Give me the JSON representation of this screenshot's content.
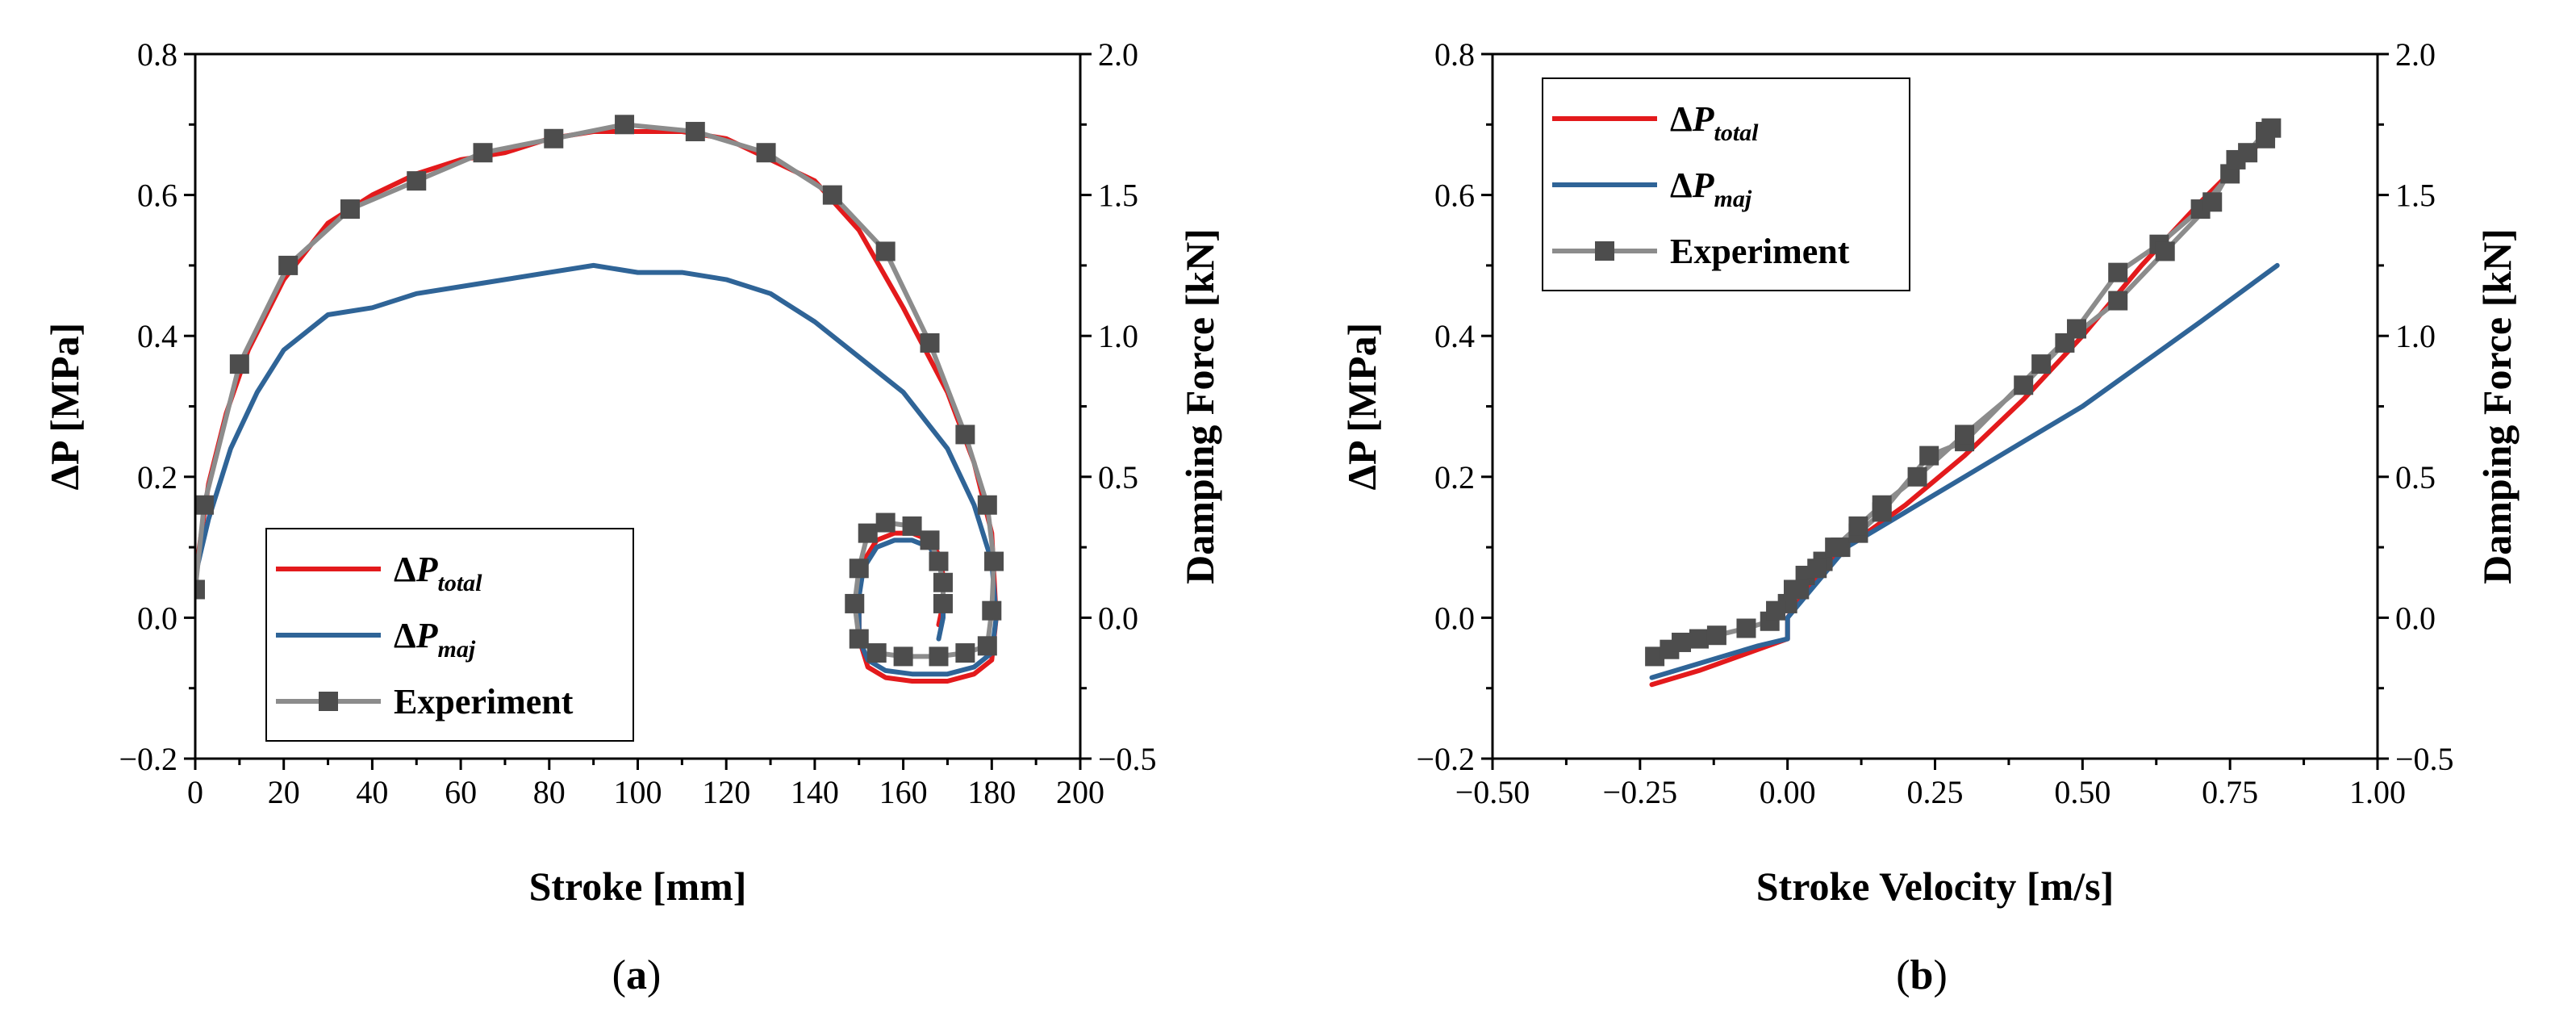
{
  "figure": {
    "labels": {
      "a": "a",
      "b": "b"
    },
    "colors": {
      "total": "#e31a1c",
      "maj": "#2f6497",
      "exp_line": "#8c8c8c",
      "exp_marker": "#4d4d4d"
    },
    "legend": {
      "delta": "ΔP",
      "p_letter": "P",
      "total_sub": "total",
      "maj_sub": "maj",
      "experiment": "Experiment"
    }
  },
  "chart_data": [
    {
      "type": "line",
      "panel": "a",
      "xlabel": "Stroke [mm]",
      "ylabel": "ΔP [MPa]",
      "y2label": "Damping Force [kN]",
      "xlim": [
        0,
        200
      ],
      "ylim": [
        -0.2,
        0.8
      ],
      "y2lim": [
        -0.5,
        2.0
      ],
      "xticks": [
        "0",
        "20",
        "40",
        "60",
        "80",
        "100",
        "120",
        "140",
        "160",
        "180",
        "200"
      ],
      "yticks": [
        "−0.2",
        "0.0",
        "0.2",
        "0.4",
        "0.6",
        "0.8"
      ],
      "y2ticks": [
        "−0.5",
        "0.0",
        "0.5",
        "1.0",
        "1.5",
        "2.0"
      ],
      "series": [
        {
          "name": "ΔP_total",
          "segments": [
            [
              [
                0,
                0.06
              ],
              [
                3,
                0.19
              ],
              [
                7,
                0.29
              ],
              [
                12,
                0.38
              ],
              [
                20,
                0.48
              ],
              [
                30,
                0.56
              ],
              [
                40,
                0.6
              ],
              [
                50,
                0.63
              ],
              [
                60,
                0.65
              ],
              [
                70,
                0.66
              ],
              [
                80,
                0.68
              ],
              [
                90,
                0.69
              ],
              [
                100,
                0.69
              ],
              [
                110,
                0.69
              ],
              [
                120,
                0.68
              ],
              [
                130,
                0.65
              ],
              [
                140,
                0.62
              ],
              [
                150,
                0.55
              ],
              [
                160,
                0.44
              ],
              [
                170,
                0.32
              ],
              [
                176,
                0.22
              ],
              [
                180,
                0.12
              ],
              [
                181,
                0.0
              ]
            ],
            [
              [
                181,
                0.0
              ],
              [
                180,
                -0.06
              ],
              [
                176,
                -0.08
              ],
              [
                170,
                -0.09
              ],
              [
                162,
                -0.09
              ],
              [
                156,
                -0.085
              ],
              [
                152,
                -0.07
              ],
              [
                150,
                -0.03
              ],
              [
                150,
                0.03
              ],
              [
                151,
                0.08
              ],
              [
                154,
                0.11
              ],
              [
                158,
                0.12
              ],
              [
                162,
                0.12
              ],
              [
                166,
                0.11
              ],
              [
                168,
                0.09
              ],
              [
                169,
                0.06
              ],
              [
                169,
                0.02
              ],
              [
                168,
                -0.01
              ]
            ]
          ]
        },
        {
          "name": "ΔP_maj",
          "segments": [
            [
              [
                0,
                0.06
              ],
              [
                3,
                0.14
              ],
              [
                8,
                0.24
              ],
              [
                14,
                0.32
              ],
              [
                20,
                0.38
              ],
              [
                30,
                0.43
              ],
              [
                40,
                0.44
              ],
              [
                50,
                0.46
              ],
              [
                60,
                0.47
              ],
              [
                70,
                0.48
              ],
              [
                80,
                0.49
              ],
              [
                90,
                0.5
              ],
              [
                100,
                0.49
              ],
              [
                110,
                0.49
              ],
              [
                120,
                0.48
              ],
              [
                130,
                0.46
              ],
              [
                140,
                0.42
              ],
              [
                150,
                0.37
              ],
              [
                160,
                0.32
              ],
              [
                170,
                0.24
              ],
              [
                176,
                0.16
              ],
              [
                180,
                0.08
              ],
              [
                181,
                0.0
              ]
            ],
            [
              [
                181,
                0.0
              ],
              [
                180,
                -0.05
              ],
              [
                176,
                -0.07
              ],
              [
                170,
                -0.08
              ],
              [
                162,
                -0.08
              ],
              [
                156,
                -0.075
              ],
              [
                152,
                -0.06
              ],
              [
                150,
                -0.03
              ],
              [
                150,
                0.03
              ],
              [
                151,
                0.07
              ],
              [
                154,
                0.1
              ],
              [
                158,
                0.11
              ],
              [
                162,
                0.11
              ],
              [
                166,
                0.1
              ],
              [
                168,
                0.08
              ],
              [
                169,
                0.05
              ],
              [
                169,
                0.0
              ],
              [
                168,
                -0.03
              ]
            ]
          ]
        },
        {
          "name": "Experiment",
          "markers": true,
          "segments": [
            [
              [
                0,
                0.04
              ],
              [
                2,
                0.16
              ],
              [
                10,
                0.36
              ],
              [
                21,
                0.5
              ],
              [
                35,
                0.58
              ],
              [
                50,
                0.62
              ],
              [
                65,
                0.66
              ],
              [
                81,
                0.68
              ],
              [
                97,
                0.7
              ],
              [
                113,
                0.69
              ],
              [
                129,
                0.66
              ],
              [
                144,
                0.6
              ],
              [
                156,
                0.52
              ],
              [
                166,
                0.39
              ],
              [
                174,
                0.26
              ],
              [
                179,
                0.16
              ],
              [
                180.5,
                0.08
              ],
              [
                180,
                0.01
              ],
              [
                179,
                -0.04
              ],
              [
                174,
                -0.05
              ],
              [
                168,
                -0.055
              ],
              [
                160,
                -0.055
              ],
              [
                154,
                -0.05
              ],
              [
                150,
                -0.03
              ],
              [
                149,
                0.02
              ],
              [
                150,
                0.07
              ],
              [
                152,
                0.12
              ],
              [
                156,
                0.135
              ],
              [
                162,
                0.13
              ],
              [
                166,
                0.11
              ],
              [
                168,
                0.08
              ],
              [
                169,
                0.05
              ],
              [
                169,
                0.02
              ]
            ]
          ]
        }
      ],
      "legend_position": "bottom-left"
    },
    {
      "type": "line",
      "panel": "b",
      "xlabel": "Stroke Velocity [m/s]",
      "ylabel": "ΔP [MPa]",
      "y2label": "Damping Force [kN]",
      "xlim": [
        -0.5,
        1.0
      ],
      "ylim": [
        -0.2,
        0.8
      ],
      "y2lim": [
        -0.5,
        2.0
      ],
      "xticks": [
        "−0.50",
        "−0.25",
        "0.00",
        "0.25",
        "0.50",
        "0.75",
        "1.00"
      ],
      "yticks": [
        "−0.2",
        "0.0",
        "0.2",
        "0.4",
        "0.6",
        "0.8"
      ],
      "y2ticks": [
        "−0.5",
        "0.0",
        "0.5",
        "1.0",
        "1.5",
        "2.0"
      ],
      "series": [
        {
          "name": "ΔP_total",
          "segments": [
            [
              [
                -0.23,
                -0.095
              ],
              [
                -0.15,
                -0.075
              ],
              [
                -0.05,
                -0.045
              ],
              [
                0.0,
                -0.03
              ],
              [
                0.0,
                0.0
              ],
              [
                0.05,
                0.06
              ],
              [
                0.1,
                0.1
              ],
              [
                0.2,
                0.16
              ],
              [
                0.3,
                0.23
              ],
              [
                0.4,
                0.31
              ],
              [
                0.5,
                0.4
              ],
              [
                0.6,
                0.5
              ],
              [
                0.7,
                0.59
              ],
              [
                0.82,
                0.69
              ]
            ]
          ]
        },
        {
          "name": "ΔP_maj",
          "segments": [
            [
              [
                -0.23,
                -0.085
              ],
              [
                -0.15,
                -0.065
              ],
              [
                -0.05,
                -0.04
              ],
              [
                0.0,
                -0.03
              ],
              [
                0.0,
                0.0
              ],
              [
                0.1,
                0.1
              ],
              [
                0.2,
                0.15
              ],
              [
                0.3,
                0.2
              ],
              [
                0.4,
                0.25
              ],
              [
                0.5,
                0.3
              ],
              [
                0.6,
                0.36
              ],
              [
                0.7,
                0.42
              ],
              [
                0.83,
                0.5
              ]
            ]
          ]
        },
        {
          "name": "Experiment",
          "markers": true,
          "segments": [
            [
              [
                -0.225,
                -0.055
              ],
              [
                -0.2,
                -0.045
              ],
              [
                -0.18,
                -0.035
              ],
              [
                -0.15,
                -0.03
              ],
              [
                -0.12,
                -0.025
              ],
              [
                -0.07,
                -0.015
              ],
              [
                -0.03,
                -0.005
              ],
              [
                0.0,
                0.02
              ],
              [
                0.01,
                0.04
              ],
              [
                0.03,
                0.06
              ],
              [
                0.06,
                0.08
              ],
              [
                0.09,
                0.1
              ],
              [
                0.12,
                0.12
              ],
              [
                0.16,
                0.15
              ],
              [
                0.24,
                0.23
              ],
              [
                0.3,
                0.25
              ],
              [
                0.43,
                0.36
              ],
              [
                0.49,
                0.41
              ],
              [
                0.56,
                0.49
              ],
              [
                0.63,
                0.53
              ],
              [
                0.7,
                0.58
              ],
              [
                0.75,
                0.63
              ],
              [
                0.78,
                0.66
              ],
              [
                0.81,
                0.69
              ],
              [
                0.82,
                0.695
              ],
              [
                0.81,
                0.68
              ],
              [
                0.76,
                0.65
              ],
              [
                0.72,
                0.59
              ],
              [
                0.64,
                0.52
              ],
              [
                0.56,
                0.45
              ],
              [
                0.47,
                0.39
              ],
              [
                0.4,
                0.33
              ],
              [
                0.3,
                0.26
              ],
              [
                0.22,
                0.2
              ],
              [
                0.16,
                0.16
              ],
              [
                0.12,
                0.13
              ],
              [
                0.08,
                0.1
              ],
              [
                0.05,
                0.07
              ],
              [
                0.02,
                0.04
              ],
              [
                -0.02,
                0.01
              ]
            ]
          ]
        }
      ],
      "legend_position": "top-left"
    }
  ]
}
